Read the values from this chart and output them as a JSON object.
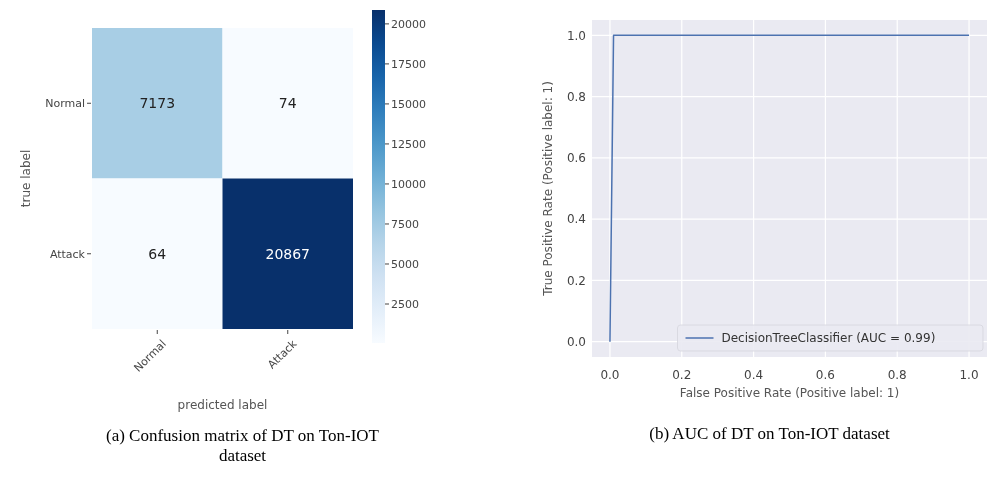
{
  "chart_data": [
    {
      "type": "heatmap",
      "categories": [
        "Normal",
        "Attack"
      ],
      "y_categories": [
        "Normal",
        "Attack"
      ],
      "cells": [
        [
          7173,
          74
        ],
        [
          64,
          20867
        ]
      ],
      "data_labels": true,
      "clim": [
        64,
        20867
      ],
      "cticks": [
        2500,
        5000,
        7500,
        10000,
        12500,
        15000,
        17500,
        20000
      ],
      "xlabel": "predicted label",
      "ylabel": "true label",
      "annotations": [
        "(a) Confusion matrix of DT on Ton-IOT dataset"
      ]
    },
    {
      "type": "line",
      "x": [
        0,
        0.01,
        1
      ],
      "series": [
        {
          "name": "DecisionTreeClassifier (AUC = 0.99)",
          "color": "#4c72b0",
          "values": [
            0,
            1,
            1
          ]
        }
      ],
      "xlim": [
        -0.05,
        1.05
      ],
      "ylim": [
        -0.05,
        1.05
      ],
      "xticks": [
        {
          "value": 0,
          "label": "0.0"
        },
        {
          "value": 0.2,
          "label": "0.2"
        },
        {
          "value": 0.4,
          "label": "0.4"
        },
        {
          "value": 0.6,
          "label": "0.6"
        },
        {
          "value": 0.8,
          "label": "0.8"
        },
        {
          "value": 1,
          "label": "1.0"
        }
      ],
      "yticks": [
        {
          "value": 0,
          "label": "0.0"
        },
        {
          "value": 0.2,
          "label": "0.2"
        },
        {
          "value": 0.4,
          "label": "0.4"
        },
        {
          "value": 0.6,
          "label": "0.6"
        },
        {
          "value": 0.8,
          "label": "0.8"
        },
        {
          "value": 1,
          "label": "1.0"
        }
      ],
      "grid": true,
      "legend": "bottom right",
      "xlabel": "False Positive Rate (Positive label: 1)",
      "ylabel": "True Positive Rate (Positive label: 1)",
      "annotations": [
        "(b) AUC of DT on Ton-IOT dataset"
      ]
    }
  ]
}
